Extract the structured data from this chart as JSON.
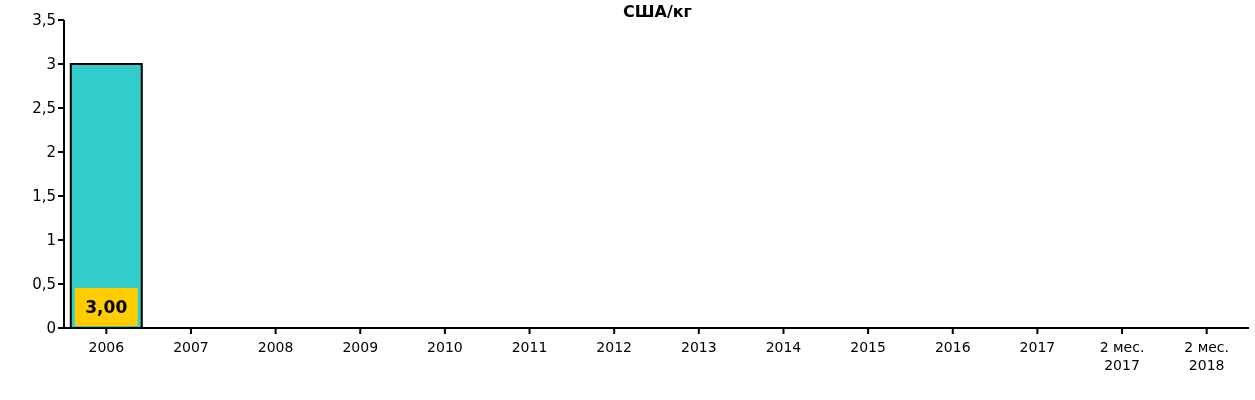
{
  "chart_data": {
    "type": "bar",
    "title": "США/кг",
    "categories": [
      "2006",
      "2007",
      "2008",
      "2009",
      "2010",
      "2011",
      "2012",
      "2013",
      "2014",
      "2015",
      "2016",
      "2017",
      "2 мес. 2017",
      "2 мес. 2018"
    ],
    "values": [
      3.0,
      null,
      null,
      null,
      null,
      null,
      null,
      null,
      null,
      null,
      null,
      null,
      null,
      null
    ],
    "value_labels": [
      "3,00",
      null,
      null,
      null,
      null,
      null,
      null,
      null,
      null,
      null,
      null,
      null,
      null,
      null
    ],
    "color": "#33cccc",
    "ylim": [
      0,
      3.5
    ],
    "yticks": [
      0,
      {
        "value": 0.5,
        "label": "0,5"
      },
      1,
      {
        "value": 1.5,
        "label": "1,5"
      },
      2,
      {
        "value": 2.5,
        "label": "2,5"
      },
      3,
      {
        "value": 3.5,
        "label": "3,5"
      }
    ],
    "grid": false,
    "legend": false
  }
}
